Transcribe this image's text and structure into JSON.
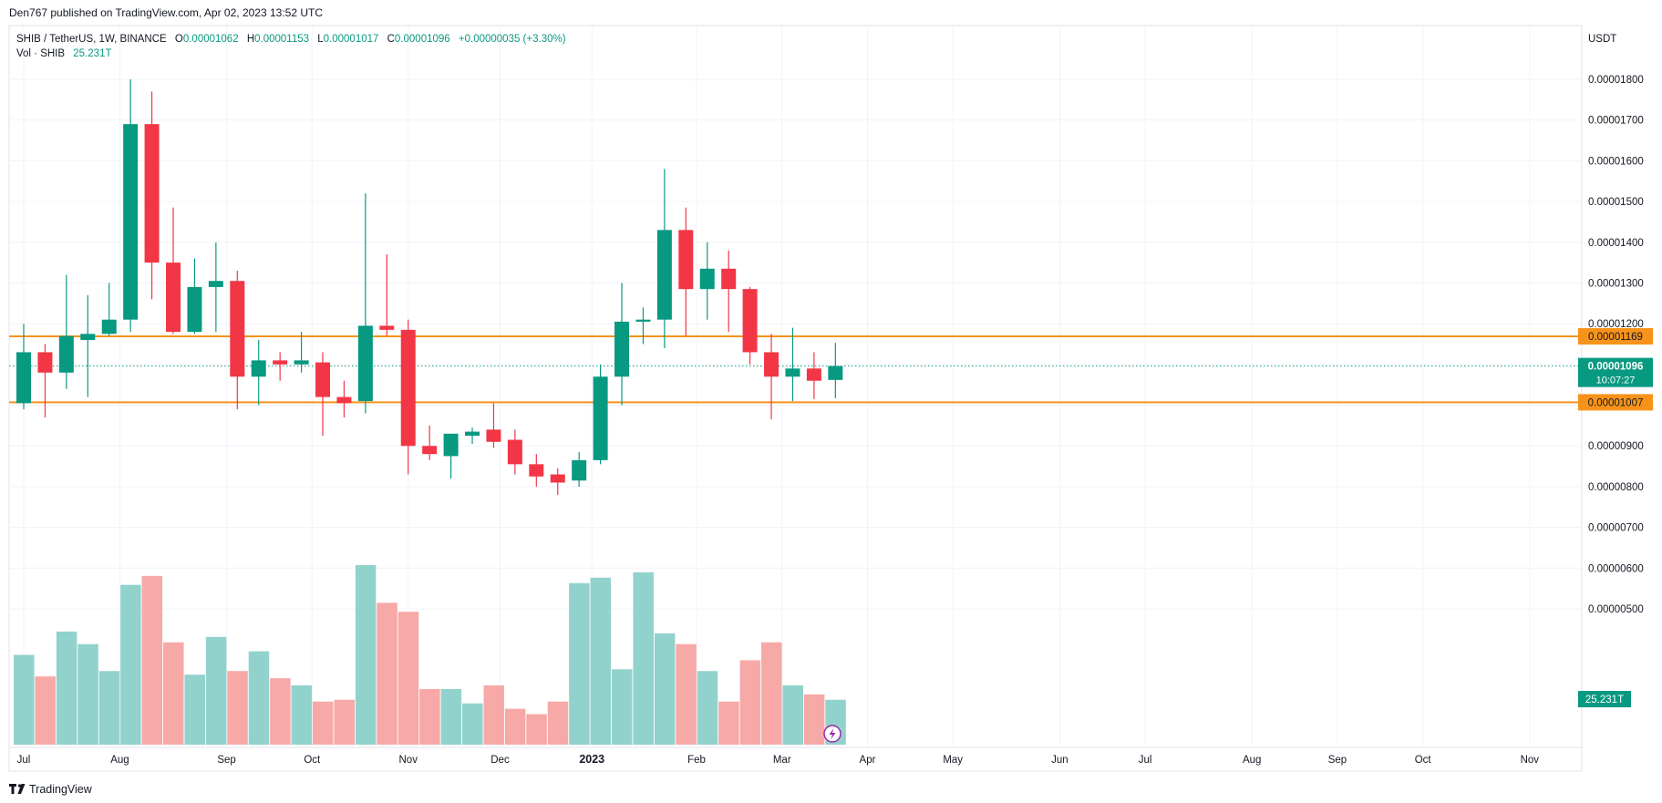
{
  "header": {
    "published": "Den767 published on TradingView.com, Apr 02, 2023 13:52 UTC"
  },
  "legend": {
    "symbol": "SHIB / TetherUS, 1W, BINANCE",
    "o_label": "O",
    "o_value": "0.00001062",
    "h_label": "H",
    "h_value": "0.00001153",
    "l_label": "L",
    "l_value": "0.00001017",
    "c_label": "C",
    "c_value": "0.00001096",
    "change": "+0.00000035 (+3.30%)",
    "vol_label": "Vol · SHIB",
    "vol_value": "25.231T"
  },
  "footer": {
    "brand": "TradingView"
  },
  "colors": {
    "up": "#089981",
    "down": "#f23645",
    "vol_up": "#92d2cc",
    "vol_down": "#f7a9a7",
    "level": "#f7931a",
    "grid": "#f0f3fa",
    "axis_text": "#131722"
  },
  "chart_data": {
    "type": "candlestick",
    "currency_label": "USDT",
    "y_ticks": [
      "0.00001800",
      "0.00001700",
      "0.00001600",
      "0.00001500",
      "0.00001400",
      "0.00001300",
      "0.00001200",
      "0.00001100",
      "0.00001000",
      "0.00000900",
      "0.00000800",
      "0.00000700",
      "0.00000600",
      "0.00000500"
    ],
    "ylim": [
      4.6e-06,
      1.82e-05
    ],
    "x_labels": [
      {
        "label": "Jul",
        "week": 0
      },
      {
        "label": "Aug",
        "week": 4.5
      },
      {
        "label": "Sep",
        "week": 9.5
      },
      {
        "label": "Oct",
        "week": 13.5
      },
      {
        "label": "Nov",
        "week": 18
      },
      {
        "label": "Dec",
        "week": 22.3
      },
      {
        "label": "2023",
        "week": 26.6
      },
      {
        "label": "Feb",
        "week": 31.5
      },
      {
        "label": "Mar",
        "week": 35.5
      },
      {
        "label": "Apr",
        "week": 39.5
      },
      {
        "label": "May",
        "week": 43.5
      },
      {
        "label": "Jun",
        "week": 48.5
      },
      {
        "label": "Jul",
        "week": 52.5
      },
      {
        "label": "Aug",
        "week": 57.5
      },
      {
        "label": "Sep",
        "week": 61.5
      },
      {
        "label": "Oct",
        "week": 65.5
      },
      {
        "label": "Nov",
        "week": 70.5
      }
    ],
    "levels": [
      {
        "value": 1.169e-05,
        "label": "0.00001169"
      },
      {
        "value": 1.007e-05,
        "label": "0.00001007"
      }
    ],
    "last_price": {
      "value": 1.096e-05,
      "label": "0.00001096",
      "countdown": "10:07:27"
    },
    "volume_badge": "25.231T",
    "candles": [
      {
        "o": 1.005e-05,
        "h": 1.2e-05,
        "l": 9.9e-06,
        "c": 1.13e-05
      },
      {
        "o": 1.13e-05,
        "h": 1.15e-05,
        "l": 9.7e-06,
        "c": 1.08e-05
      },
      {
        "o": 1.08e-05,
        "h": 1.32e-05,
        "l": 1.04e-05,
        "c": 1.17e-05
      },
      {
        "o": 1.16e-05,
        "h": 1.27e-05,
        "l": 1.02e-05,
        "c": 1.175e-05
      },
      {
        "o": 1.175e-05,
        "h": 1.3e-05,
        "l": 1.17e-05,
        "c": 1.21e-05
      },
      {
        "o": 1.21e-05,
        "h": 1.8e-05,
        "l": 1.18e-05,
        "c": 1.69e-05
      },
      {
        "o": 1.69e-05,
        "h": 1.77e-05,
        "l": 1.26e-05,
        "c": 1.35e-05
      },
      {
        "o": 1.35e-05,
        "h": 1.485e-05,
        "l": 1.175e-05,
        "c": 1.18e-05
      },
      {
        "o": 1.18e-05,
        "h": 1.36e-05,
        "l": 1.175e-05,
        "c": 1.29e-05
      },
      {
        "o": 1.29e-05,
        "h": 1.4e-05,
        "l": 1.18e-05,
        "c": 1.305e-05
      },
      {
        "o": 1.305e-05,
        "h": 1.33e-05,
        "l": 9.9e-06,
        "c": 1.07e-05
      },
      {
        "o": 1.07e-05,
        "h": 1.16e-05,
        "l": 1e-05,
        "c": 1.11e-05
      },
      {
        "o": 1.11e-05,
        "h": 1.13e-05,
        "l": 1.06e-05,
        "c": 1.1e-05
      },
      {
        "o": 1.1e-05,
        "h": 1.18e-05,
        "l": 1.08e-05,
        "c": 1.11e-05
      },
      {
        "o": 1.105e-05,
        "h": 1.13e-05,
        "l": 9.25e-06,
        "c": 1.02e-05
      },
      {
        "o": 1.02e-05,
        "h": 1.06e-05,
        "l": 9.7e-06,
        "c": 1.005e-05
      },
      {
        "o": 1.01e-05,
        "h": 1.52e-05,
        "l": 9.8e-06,
        "c": 1.195e-05
      },
      {
        "o": 1.195e-05,
        "h": 1.37e-05,
        "l": 1.17e-05,
        "c": 1.185e-05
      },
      {
        "o": 1.185e-05,
        "h": 1.21e-05,
        "l": 8.3e-06,
        "c": 9e-06
      },
      {
        "o": 9e-06,
        "h": 9.5e-06,
        "l": 8.65e-06,
        "c": 8.8e-06
      },
      {
        "o": 8.75e-06,
        "h": 9.3e-06,
        "l": 8.2e-06,
        "c": 9.3e-06
      },
      {
        "o": 9.25e-06,
        "h": 9.45e-06,
        "l": 9.05e-06,
        "c": 9.35e-06
      },
      {
        "o": 9.4e-06,
        "h": 1.005e-05,
        "l": 8.95e-06,
        "c": 9.1e-06
      },
      {
        "o": 9.15e-06,
        "h": 9.4e-06,
        "l": 8.3e-06,
        "c": 8.55e-06
      },
      {
        "o": 8.55e-06,
        "h": 8.8e-06,
        "l": 8e-06,
        "c": 8.25e-06
      },
      {
        "o": 8.3e-06,
        "h": 8.45e-06,
        "l": 7.8e-06,
        "c": 8.1e-06
      },
      {
        "o": 8.15e-06,
        "h": 8.85e-06,
        "l": 8e-06,
        "c": 8.65e-06
      },
      {
        "o": 8.65e-06,
        "h": 1.1e-05,
        "l": 8.55e-06,
        "c": 1.07e-05
      },
      {
        "o": 1.07e-05,
        "h": 1.3e-05,
        "l": 1e-05,
        "c": 1.205e-05
      },
      {
        "o": 1.205e-05,
        "h": 1.24e-05,
        "l": 1.15e-05,
        "c": 1.21e-05
      },
      {
        "o": 1.21e-05,
        "h": 1.58e-05,
        "l": 1.14e-05,
        "c": 1.43e-05
      },
      {
        "o": 1.43e-05,
        "h": 1.485e-05,
        "l": 1.17e-05,
        "c": 1.285e-05
      },
      {
        "o": 1.285e-05,
        "h": 1.4e-05,
        "l": 1.21e-05,
        "c": 1.335e-05
      },
      {
        "o": 1.335e-05,
        "h": 1.38e-05,
        "l": 1.18e-05,
        "c": 1.285e-05
      },
      {
        "o": 1.285e-05,
        "h": 1.29e-05,
        "l": 1.1e-05,
        "c": 1.13e-05
      },
      {
        "o": 1.13e-05,
        "h": 1.175e-05,
        "l": 9.65e-06,
        "c": 1.07e-05
      },
      {
        "o": 1.07e-05,
        "h": 1.19e-05,
        "l": 1.01e-05,
        "c": 1.09e-05
      },
      {
        "o": 1.09e-05,
        "h": 1.13e-05,
        "l": 1.015e-05,
        "c": 1.06e-05
      },
      {
        "o": 1.062e-05,
        "h": 1.153e-05,
        "l": 1.017e-05,
        "c": 1.096e-05
      }
    ],
    "volume": [
      0.5,
      0.38,
      0.63,
      0.56,
      0.41,
      0.89,
      0.94,
      0.57,
      0.39,
      0.6,
      0.41,
      0.52,
      0.37,
      0.33,
      0.24,
      0.25,
      1.0,
      0.79,
      0.74,
      0.31,
      0.31,
      0.23,
      0.33,
      0.2,
      0.17,
      0.24,
      0.9,
      0.93,
      0.42,
      0.96,
      0.62,
      0.56,
      0.41,
      0.24,
      0.47,
      0.57,
      0.33,
      0.28,
      0.25
    ]
  }
}
